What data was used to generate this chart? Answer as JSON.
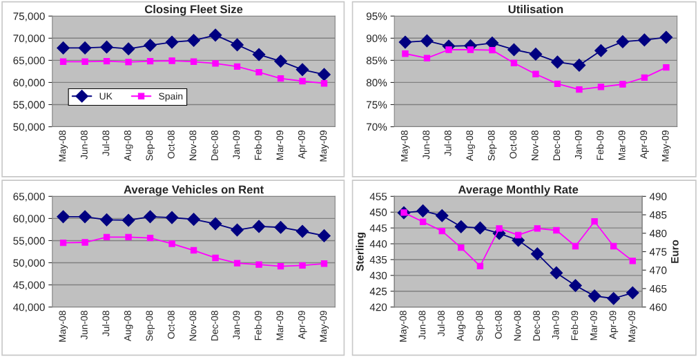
{
  "chart_data": [
    {
      "type": "line",
      "title": "Closing Fleet Size",
      "categories": [
        "May-08",
        "Jun-08",
        "Jul-08",
        "Aug-08",
        "Sep-08",
        "Oct-08",
        "Nov-08",
        "Dec-08",
        "Jan-09",
        "Feb-09",
        "Mar-09",
        "Apr-09",
        "May-09"
      ],
      "series": [
        {
          "name": "UK",
          "color": "#000080",
          "marker": "diamond",
          "values": [
            67800,
            67800,
            68000,
            67600,
            68400,
            69100,
            69500,
            70700,
            68500,
            66300,
            64800,
            62900,
            61800
          ]
        },
        {
          "name": "Spain",
          "color": "#ff00ff",
          "marker": "square",
          "values": [
            64700,
            64700,
            64800,
            64600,
            64800,
            64900,
            64700,
            64300,
            63600,
            62300,
            60900,
            60300,
            59800
          ]
        }
      ],
      "ylim": [
        50000,
        75000
      ],
      "yticks": [
        {
          "value": 50000,
          "label": "50,000"
        },
        {
          "value": 55000,
          "label": "55,000"
        },
        {
          "value": 60000,
          "label": "60,000"
        },
        {
          "value": 65000,
          "label": "65,000"
        },
        {
          "value": 70000,
          "label": "70,000"
        },
        {
          "value": 75000,
          "label": "75,000"
        }
      ],
      "grid": "y",
      "legend": "bottom left"
    },
    {
      "type": "line",
      "title": "Utilisation",
      "categories": [
        "May-08",
        "Jun-08",
        "Jul-08",
        "Aug-08",
        "Sep-08",
        "Oct-08",
        "Nov-08",
        "Dec-08",
        "Jan-09",
        "Feb-09",
        "Mar-09",
        "Apr-09",
        "May-09"
      ],
      "series": [
        {
          "color": "#000080",
          "marker": "diamond",
          "values": [
            89.1,
            89.4,
            88.2,
            88.3,
            88.9,
            87.4,
            86.4,
            84.6,
            83.9,
            87.2,
            89.2,
            89.6,
            90.2
          ]
        },
        {
          "color": "#ff00ff",
          "marker": "square",
          "values": [
            86.5,
            85.5,
            87.4,
            87.4,
            87.3,
            84.4,
            81.9,
            79.7,
            78.4,
            79.0,
            79.6,
            81.1,
            83.4
          ]
        }
      ],
      "ylim": [
        70,
        95
      ],
      "yticks": [
        {
          "value": 70,
          "label": "70%"
        },
        {
          "value": 75,
          "label": "75%"
        },
        {
          "value": 80,
          "label": "80%"
        },
        {
          "value": 85,
          "label": "85%"
        },
        {
          "value": 90,
          "label": "90%"
        },
        {
          "value": 95,
          "label": "95%"
        }
      ],
      "grid": "y"
    },
    {
      "type": "line",
      "title": "Average Vehicles on Rent",
      "categories": [
        "May-08",
        "Jun-08",
        "Jul-08",
        "Aug-08",
        "Sep-08",
        "Oct-08",
        "Nov-08",
        "Dec-08",
        "Jan-09",
        "Feb-09",
        "Mar-09",
        "Apr-09",
        "May-09"
      ],
      "series": [
        {
          "color": "#000080",
          "marker": "diamond",
          "values": [
            60400,
            60400,
            59700,
            59600,
            60400,
            60200,
            59800,
            58800,
            57400,
            58200,
            58000,
            57100,
            56100
          ]
        },
        {
          "color": "#ff00ff",
          "marker": "square",
          "values": [
            54500,
            54600,
            55800,
            55800,
            55600,
            54300,
            52800,
            51100,
            49900,
            49600,
            49200,
            49400,
            49800
          ]
        }
      ],
      "ylim": [
        40000,
        65000
      ],
      "yticks": [
        {
          "value": 40000,
          "label": "40,000"
        },
        {
          "value": 45000,
          "label": "45,000"
        },
        {
          "value": 50000,
          "label": "50,000"
        },
        {
          "value": 55000,
          "label": "55,000"
        },
        {
          "value": 60000,
          "label": "60,000"
        },
        {
          "value": 65000,
          "label": "65,000"
        }
      ],
      "grid": "y"
    },
    {
      "type": "line",
      "title": "Average Monthly Rate",
      "ylabel": "Sterling",
      "y2label": "Euro",
      "categories": [
        "May-08",
        "Jun-08",
        "Jul-08",
        "Aug-08",
        "Sep-08",
        "Oct-08",
        "Nov-08",
        "Dec-08",
        "Jan-09",
        "Feb-09",
        "Mar-09",
        "Apr-09",
        "May-09"
      ],
      "series": [
        {
          "color": "#000080",
          "marker": "diamond",
          "values": [
            449.8,
            450.4,
            448.9,
            445.4,
            445.0,
            443.3,
            441.1,
            436.8,
            430.8,
            426.8,
            423.5,
            422.7,
            424.5
          ]
        },
        {
          "color": "#ff00ff",
          "marker": "square",
          "axis": "y2",
          "values": [
            485.6,
            483.1,
            480.6,
            476.1,
            471.1,
            481.3,
            479.5,
            481.3,
            480.8,
            476.5,
            483.2,
            476.5,
            472.5
          ]
        }
      ],
      "ylim": [
        420,
        455
      ],
      "yticks": [
        420,
        425,
        430,
        435,
        440,
        445,
        450,
        455
      ],
      "y2lim": [
        460,
        490
      ],
      "y2ticks": [
        460,
        465,
        470,
        475,
        480,
        485,
        490
      ],
      "grid": "y"
    }
  ]
}
